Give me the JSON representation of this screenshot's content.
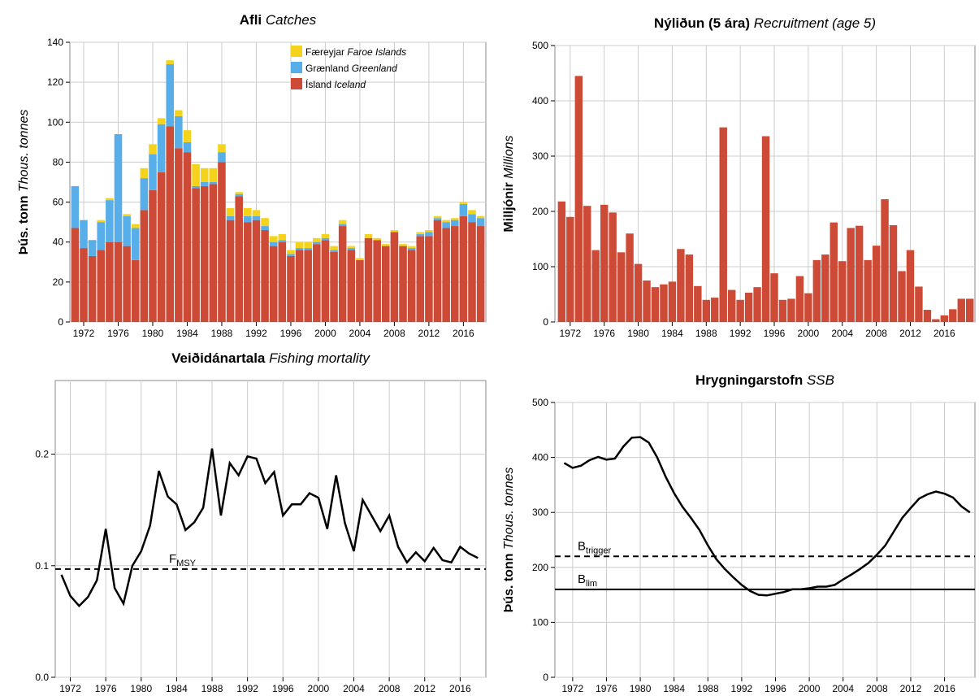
{
  "chart_data": [
    {
      "type": "bar",
      "title": "Afli",
      "title_en": "Catches",
      "ylabel": "Þús. tonn",
      "ylabel_en": "Thous. tonnes",
      "stacked": true,
      "x": [
        1971,
        1972,
        1973,
        1974,
        1975,
        1976,
        1977,
        1978,
        1979,
        1980,
        1981,
        1982,
        1983,
        1984,
        1985,
        1986,
        1987,
        1988,
        1989,
        1990,
        1991,
        1992,
        1993,
        1994,
        1995,
        1996,
        1997,
        1998,
        1999,
        2000,
        2001,
        2002,
        2003,
        2004,
        2005,
        2006,
        2007,
        2008,
        2009,
        2010,
        2011,
        2012,
        2013,
        2014,
        2015,
        2016,
        2017,
        2018
      ],
      "xlim": [
        1970.4,
        2018.6
      ],
      "xticks": [
        1972,
        1976,
        1980,
        1984,
        1988,
        1992,
        1996,
        2000,
        2004,
        2008,
        2012,
        2016
      ],
      "ylim": [
        0,
        140
      ],
      "yticks": [
        0,
        20,
        40,
        60,
        80,
        100,
        120,
        140
      ],
      "grid": true,
      "legend": "top-center",
      "series": [
        {
          "name": "Ísland",
          "name_en": "Iceland",
          "color": "#cc4a36",
          "values": [
            47,
            37,
            33,
            36,
            40,
            40,
            38,
            31,
            56,
            66,
            75,
            98,
            87,
            85,
            67,
            68,
            69,
            80,
            51,
            63,
            50,
            51,
            46,
            38,
            40,
            33,
            36,
            36,
            39,
            41,
            35,
            48,
            36,
            31,
            42,
            41,
            38,
            45,
            38,
            36,
            43,
            43,
            51,
            47,
            48,
            53,
            50,
            48
          ]
        },
        {
          "name": "Grænland",
          "name_en": "Greenland",
          "color": "#58aee8",
          "values": [
            21,
            14,
            8,
            14,
            21,
            54,
            15,
            16,
            16,
            18,
            24,
            31,
            16,
            5,
            1,
            2,
            1,
            5,
            2,
            1,
            3,
            2,
            2,
            2,
            1,
            1,
            1,
            1,
            1,
            1,
            1,
            1,
            1,
            0,
            0,
            0,
            0,
            0,
            0,
            1,
            1,
            2,
            1,
            3,
            3,
            6,
            4,
            4
          ]
        },
        {
          "name": "Færeyjar",
          "name_en": "Faroe Islands",
          "color": "#f5d31c",
          "values": [
            0,
            0,
            0,
            1,
            1,
            0,
            1,
            2,
            5,
            5,
            3,
            2,
            3,
            6,
            11,
            7,
            7,
            4,
            4,
            1,
            4,
            3,
            4,
            3,
            3,
            2,
            3,
            3,
            2,
            2,
            2,
            2,
            1,
            1,
            2,
            1,
            1,
            1,
            1,
            1,
            1,
            1,
            1,
            1,
            1,
            1,
            2,
            1
          ]
        }
      ]
    },
    {
      "type": "bar",
      "title": "Nýliðun (5 ára)",
      "title_en": "Recruitment (age 5)",
      "ylabel": "Milljónir",
      "ylabel_en": "Millions",
      "x": [
        1971,
        1972,
        1973,
        1974,
        1975,
        1976,
        1977,
        1978,
        1979,
        1980,
        1981,
        1982,
        1983,
        1984,
        1985,
        1986,
        1987,
        1988,
        1989,
        1990,
        1991,
        1992,
        1993,
        1994,
        1995,
        1996,
        1997,
        1998,
        1999,
        2000,
        2001,
        2002,
        2003,
        2004,
        2005,
        2006,
        2007,
        2008,
        2009,
        2010,
        2011,
        2012,
        2013,
        2014,
        2015,
        2016,
        2017,
        2018,
        2019
      ],
      "xlim": [
        1970.2,
        2019.6
      ],
      "xticks": [
        1972,
        1976,
        1980,
        1984,
        1988,
        1992,
        1996,
        2000,
        2004,
        2008,
        2012,
        2016
      ],
      "ylim": [
        0,
        500
      ],
      "yticks": [
        0,
        100,
        200,
        300,
        400,
        500
      ],
      "grid": true,
      "series": [
        {
          "color": "#cc4a36",
          "values": [
            218,
            190,
            445,
            210,
            130,
            212,
            198,
            126,
            160,
            105,
            75,
            63,
            68,
            73,
            132,
            122,
            65,
            40,
            44,
            352,
            58,
            40,
            53,
            63,
            336,
            88,
            40,
            42,
            83,
            52,
            112,
            122,
            180,
            110,
            170,
            174,
            112,
            138,
            222,
            175,
            92,
            130,
            64,
            22,
            5,
            12,
            23,
            42,
            42
          ]
        }
      ]
    },
    {
      "type": "line",
      "title": "Veiðidánartala",
      "title_en": "Fishing mortality",
      "x": [
        1971,
        1972,
        1973,
        1974,
        1975,
        1976,
        1977,
        1978,
        1979,
        1980,
        1981,
        1982,
        1983,
        1984,
        1985,
        1986,
        1987,
        1988,
        1989,
        1990,
        1991,
        1992,
        1993,
        1994,
        1995,
        1996,
        1997,
        1998,
        1999,
        2000,
        2001,
        2002,
        2003,
        2004,
        2005,
        2006,
        2007,
        2008,
        2009,
        2010,
        2011,
        2012,
        2013,
        2014,
        2015,
        2016,
        2017,
        2018
      ],
      "xlim": [
        1970.3,
        2018.9
      ],
      "xticks": [
        1972,
        1976,
        1980,
        1984,
        1988,
        1992,
        1996,
        2000,
        2004,
        2008,
        2012,
        2016
      ],
      "ylim": [
        0,
        0.266
      ],
      "yticks": [
        {
          "value": 0,
          "label": "0.0"
        },
        0.1,
        0.2
      ],
      "grid": true,
      "series": [
        {
          "color": "#000000",
          "values": [
            0.092,
            0.073,
            0.064,
            0.072,
            0.087,
            0.133,
            0.08,
            0.066,
            0.1,
            0.113,
            0.136,
            0.185,
            0.162,
            0.155,
            0.132,
            0.139,
            0.152,
            0.205,
            0.145,
            0.192,
            0.181,
            0.198,
            0.196,
            0.174,
            0.184,
            0.145,
            0.155,
            0.155,
            0.165,
            0.161,
            0.133,
            0.181,
            0.138,
            0.113,
            0.159,
            0.145,
            0.131,
            0.145,
            0.117,
            0.103,
            0.112,
            0.104,
            0.116,
            0.105,
            0.103,
            0.117,
            0.111,
            0.107
          ]
        }
      ],
      "hlines": [
        {
          "value": 0.097,
          "label": "F",
          "sub": "MSY",
          "style": "dashed"
        }
      ]
    },
    {
      "type": "line",
      "title": "Hrygningarstofn",
      "title_en": "SSB",
      "ylabel": "Þús. tonn",
      "ylabel_en": "Thous. tonnes",
      "x": [
        1971,
        1972,
        1973,
        1974,
        1975,
        1976,
        1977,
        1978,
        1979,
        1980,
        1981,
        1982,
        1983,
        1984,
        1985,
        1986,
        1987,
        1988,
        1989,
        1990,
        1991,
        1992,
        1993,
        1994,
        1995,
        1996,
        1997,
        1998,
        1999,
        2000,
        2001,
        2002,
        2003,
        2004,
        2005,
        2006,
        2007,
        2008,
        2009,
        2010,
        2011,
        2012,
        2013,
        2014,
        2015,
        2016,
        2017,
        2018,
        2019
      ],
      "xlim": [
        1969.9,
        2019.6
      ],
      "xticks": [
        1972,
        1976,
        1980,
        1984,
        1988,
        1992,
        1996,
        2000,
        2004,
        2008,
        2012,
        2016
      ],
      "ylim": [
        0,
        500
      ],
      "yticks": [
        0,
        100,
        200,
        300,
        400,
        500
      ],
      "grid": true,
      "series": [
        {
          "color": "#000000",
          "values": [
            390,
            381,
            385,
            395,
            401,
            396,
            398,
            420,
            436,
            437,
            427,
            400,
            365,
            335,
            310,
            290,
            268,
            240,
            215,
            197,
            182,
            168,
            157,
            150,
            149,
            152,
            155,
            160,
            160,
            162,
            165,
            165,
            168,
            178,
            187,
            197,
            208,
            223,
            240,
            265,
            290,
            308,
            325,
            333,
            338,
            334,
            327,
            311,
            300
          ]
        }
      ],
      "hlines": [
        {
          "value": 220,
          "label": "B",
          "sub": "trigger",
          "style": "dashed"
        },
        {
          "value": 160,
          "label": "B",
          "sub": "lim",
          "style": "solid"
        }
      ]
    }
  ]
}
